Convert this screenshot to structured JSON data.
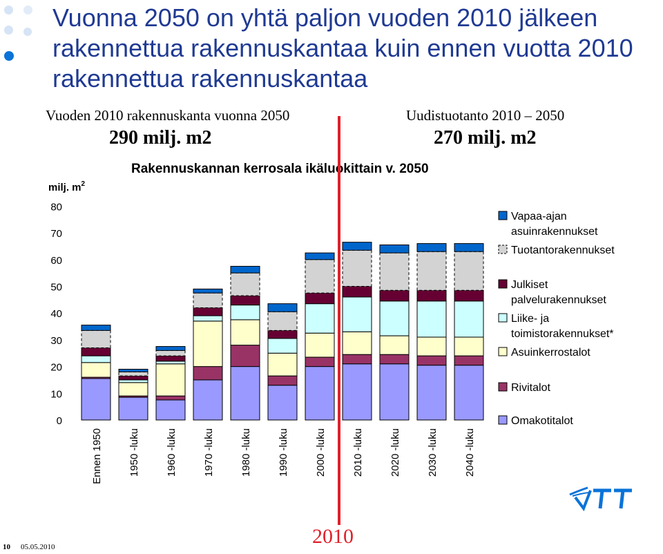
{
  "slide": {
    "title": "Vuonna 2050 on yhtä paljon vuoden 2010 jälkeen rakennettua rakennuskantaa kuin ennen vuotta 2010 rakennettua rakennuskantaa",
    "left_header": "Vuoden 2010 rakennuskanta vuonna 2050",
    "left_value": "290 milj. m2",
    "right_header": "Uudistuotanto  2010 – 2050",
    "right_value": "270 milj. m2",
    "year_marker": "2010",
    "page_number": "10",
    "date": "05.05.2010",
    "logo_text": "VTT",
    "divider_color": "#e0202a",
    "title_color": "#1f3a93"
  },
  "chart_data": {
    "type": "bar",
    "stacked": true,
    "title": "Rakennuskannan kerrosala ikäluokittain v. 2050",
    "ylabel": "milj. m",
    "ylabel_superscript": "2",
    "ylim": [
      0,
      80
    ],
    "yticks": [
      0,
      10,
      20,
      30,
      40,
      50,
      60,
      70,
      80
    ],
    "grid": false,
    "legend_position": "right",
    "categories": [
      "Ennen 1950",
      "1950 -luku",
      "1960 -luku",
      "1970 -luku",
      "1980 -luku",
      "1990 -luku",
      "2000 -luku",
      "2010 -luku",
      "2020 -luku",
      "2030 -luku",
      "2040 -luku"
    ],
    "series": [
      {
        "name": "Omakotitalot",
        "color": "#9999ff",
        "values": [
          15.5,
          8.5,
          7.5,
          15,
          20,
          13,
          20,
          21,
          21,
          20.5,
          20.5
        ]
      },
      {
        "name": "Rivitalot",
        "color": "#993366",
        "values": [
          0.5,
          0.5,
          1.5,
          5,
          8,
          3.5,
          3.5,
          3.5,
          3.5,
          3.5,
          3.5
        ]
      },
      {
        "name": "Asuinkerrostalot",
        "color": "#ffffcc",
        "values": [
          5.5,
          5,
          12,
          17,
          9.5,
          8.5,
          9,
          8.5,
          7,
          7,
          7
        ]
      },
      {
        "name": "Liike- ja toimistorakennukset*",
        "color": "#ccffff",
        "values": [
          2.5,
          1,
          1,
          2,
          5.5,
          5.5,
          11,
          13,
          13,
          13.5,
          13.5
        ]
      },
      {
        "name": "Julkiset palvelurakennukset",
        "color": "#660033",
        "values": [
          3,
          1.5,
          2,
          3,
          3.5,
          3,
          4,
          4,
          4,
          4,
          4
        ]
      },
      {
        "name": "Tuotantorakennukset",
        "color": "#d3d3d3",
        "values": [
          6.5,
          1.5,
          2,
          5.5,
          8.5,
          7,
          12.5,
          13.5,
          14,
          14.5,
          14.5
        ]
      },
      {
        "name": "Vapaa-ajan asuinrakennukset",
        "color": "#0066cc",
        "values": [
          2,
          1,
          1.5,
          1.5,
          2.5,
          3,
          2.5,
          3,
          3,
          3,
          3
        ]
      }
    ],
    "legend_order": [
      "Vapaa-ajan asuinrakennukset",
      "Tuotantorakennukset",
      "Julkiset palvelurakennukset",
      "Liike- ja toimistorakennukset*",
      "Asuinkerrostalot",
      "Rivitalot",
      "Omakotitalot"
    ]
  }
}
